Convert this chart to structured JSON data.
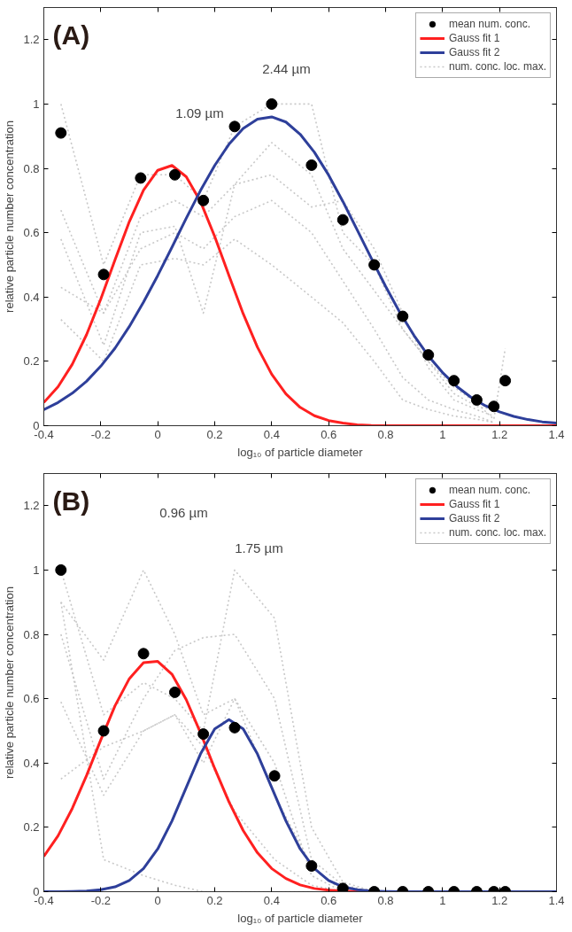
{
  "chart_data": [
    {
      "type": "line",
      "xlabel": "log₁₀ of particle diameter",
      "ylabel": "relative particle number concentration",
      "xlim": [
        -0.4,
        1.4
      ],
      "ylim": [
        0,
        1.3
      ],
      "xticks": [
        -0.4,
        -0.2,
        0,
        0.2,
        0.4,
        0.6,
        0.8,
        1,
        1.2,
        1.4
      ],
      "yticks": [
        0,
        0.2,
        0.4,
        0.6,
        0.8,
        1,
        1.2
      ],
      "grid": false,
      "legend": "top right",
      "annotations": [
        "(A)",
        "1.09 µm",
        "2.44 µm"
      ],
      "x": [
        -0.4,
        -0.35,
        -0.3,
        -0.25,
        -0.2,
        -0.15,
        -0.1,
        -0.05,
        0,
        0.05,
        0.1,
        0.15,
        0.2,
        0.25,
        0.3,
        0.35,
        0.4,
        0.45,
        0.5,
        0.55,
        0.6,
        0.65,
        0.7,
        0.75,
        0.8,
        0.85,
        0.9,
        0.95,
        1,
        1.05,
        1.1,
        1.15,
        1.2,
        1.25,
        1.3,
        1.35,
        1.4
      ],
      "series": [
        {
          "type": "scatter",
          "name": "mean num. conc.",
          "color": "#000000",
          "marker": "circle",
          "x": [
            -0.34,
            -0.19,
            -0.06,
            0.06,
            0.16,
            0.27,
            0.4,
            0.54,
            0.65,
            0.76,
            0.86,
            0.95,
            1.04,
            1.12,
            1.18,
            1.22
          ],
          "values": [
            0.91,
            0.47,
            0.77,
            0.78,
            0.7,
            0.93,
            1.0,
            0.81,
            0.64,
            0.5,
            0.34,
            0.22,
            0.14,
            0.08,
            0.06,
            0.14
          ]
        },
        {
          "name": "Gauss fit 1",
          "color": "#ff2020",
          "line_style": "solid",
          "values": [
            0.072,
            0.121,
            0.191,
            0.283,
            0.394,
            0.516,
            0.634,
            0.732,
            0.794,
            0.809,
            0.774,
            0.697,
            0.588,
            0.467,
            0.348,
            0.244,
            0.16,
            0.099,
            0.057,
            0.031,
            0.016,
            0.008,
            0.003,
            0.001,
            0,
            0,
            0,
            0,
            0,
            0,
            0,
            0,
            0,
            0,
            0,
            0,
            0
          ]
        },
        {
          "name": "Gauss fit 2",
          "color": "#2e3f9a",
          "line_style": "solid",
          "values": [
            0.05,
            0.072,
            0.101,
            0.138,
            0.185,
            0.241,
            0.308,
            0.384,
            0.467,
            0.555,
            0.645,
            0.731,
            0.809,
            0.875,
            0.924,
            0.953,
            0.96,
            0.944,
            0.906,
            0.85,
            0.779,
            0.697,
            0.609,
            0.52,
            0.433,
            0.352,
            0.28,
            0.217,
            0.165,
            0.122,
            0.088,
            0.062,
            0.043,
            0.029,
            0.019,
            0.012,
            0.008
          ]
        },
        {
          "name": "num. conc. loc. max.",
          "color": "#c8c8c8",
          "line_style": "dotted",
          "x": [
            -0.34,
            -0.19,
            -0.06,
            0.06,
            0.16,
            0.27,
            0.4,
            0.54,
            0.65,
            0.76,
            0.86,
            0.95,
            1.04,
            1.12,
            1.18,
            1.22
          ],
          "values": [
            1.0,
            0.5,
            0.78,
            0.78,
            0.7,
            0.93,
            1.0,
            1.0,
            0.6,
            0.5,
            0.3,
            0.2,
            0.12,
            0.07,
            0.02,
            0.24
          ]
        },
        {
          "color": "#c8c8c8",
          "line_style": "dotted",
          "x": [
            -0.34,
            -0.19,
            -0.06,
            0.06,
            0.16,
            0.27,
            0.4,
            0.54,
            0.65,
            0.76,
            0.86,
            0.95,
            1.04,
            1.12,
            1.18
          ],
          "values": [
            0.67,
            0.35,
            0.65,
            0.7,
            0.65,
            0.75,
            0.88,
            0.78,
            0.55,
            0.42,
            0.3,
            0.2,
            0.1,
            0.06,
            0.05
          ]
        },
        {
          "color": "#c8c8c8",
          "line_style": "dotted",
          "x": [
            -0.34,
            -0.19,
            -0.06,
            0.06,
            0.16,
            0.27,
            0.4,
            0.54,
            0.65,
            0.76,
            0.86,
            0.95,
            1.04,
            1.12,
            1.18
          ],
          "values": [
            0.58,
            0.25,
            0.6,
            0.62,
            0.35,
            0.75,
            0.78,
            0.68,
            0.7,
            0.55,
            0.35,
            0.18,
            0.08,
            0.05,
            0.03
          ]
        },
        {
          "color": "#c8c8c8",
          "line_style": "dotted",
          "x": [
            -0.34,
            -0.19,
            -0.06,
            0.06,
            0.16,
            0.27,
            0.4,
            0.54,
            0.65,
            0.76,
            0.86,
            0.95,
            1.04,
            1.12,
            1.18
          ],
          "values": [
            0.43,
            0.35,
            0.55,
            0.6,
            0.55,
            0.65,
            0.7,
            0.6,
            0.45,
            0.3,
            0.15,
            0.08,
            0.05,
            0.03,
            0.01
          ]
        },
        {
          "color": "#c8c8c8",
          "line_style": "dotted",
          "x": [
            -0.34,
            -0.19,
            -0.06,
            0.06,
            0.16,
            0.27,
            0.4,
            0.54,
            0.65,
            0.76,
            0.86,
            0.95,
            1.04,
            1.12,
            1.18
          ],
          "values": [
            0.33,
            0.2,
            0.5,
            0.52,
            0.5,
            0.58,
            0.5,
            0.4,
            0.32,
            0.2,
            0.08,
            0.05,
            0.03,
            0.02,
            0.01
          ]
        }
      ]
    },
    {
      "type": "line",
      "xlabel": "log₁₀ of particle diameter",
      "ylabel": "relative particle number concentration",
      "xlim": [
        -0.4,
        1.4
      ],
      "ylim": [
        0,
        1.3
      ],
      "xticks": [
        -0.4,
        -0.2,
        0,
        0.2,
        0.4,
        0.6,
        0.8,
        1,
        1.2,
        1.4
      ],
      "yticks": [
        0,
        0.2,
        0.4,
        0.6,
        0.8,
        1,
        1.2
      ],
      "grid": false,
      "legend": "top right",
      "annotations": [
        "(B)",
        "0.96 µm",
        "1.75 µm"
      ],
      "x": [
        -0.4,
        -0.35,
        -0.3,
        -0.25,
        -0.2,
        -0.15,
        -0.1,
        -0.05,
        0,
        0.05,
        0.1,
        0.15,
        0.2,
        0.25,
        0.3,
        0.35,
        0.4,
        0.45,
        0.5,
        0.55,
        0.6,
        0.65,
        0.7,
        0.75,
        0.8,
        0.85,
        0.9,
        0.95,
        1,
        1.05,
        1.1,
        1.15,
        1.2,
        1.25,
        1.3,
        1.35,
        1.4
      ],
      "series": [
        {
          "type": "scatter",
          "name": "mean num. conc.",
          "color": "#000000",
          "marker": "circle",
          "x": [
            -0.34,
            -0.19,
            -0.05,
            0.06,
            0.16,
            0.27,
            0.41,
            0.54,
            0.65,
            0.76,
            0.86,
            0.95,
            1.04,
            1.12,
            1.18,
            1.22
          ],
          "values": [
            1.0,
            0.5,
            0.74,
            0.62,
            0.49,
            0.51,
            0.36,
            0.08,
            0.01,
            0,
            0,
            0,
            0,
            0,
            0,
            0
          ]
        },
        {
          "name": "Gauss fit 1",
          "color": "#ff2020",
          "line_style": "solid",
          "x": [
            -0.4,
            -0.35,
            -0.3,
            -0.25,
            -0.2,
            -0.15,
            -0.1,
            -0.05,
            0,
            0.05,
            0.1,
            0.15,
            0.2,
            0.25,
            0.3,
            0.35,
            0.4,
            0.45,
            0.5,
            0.55,
            0.6,
            0.65,
            0.7,
            0.75
          ],
          "values": [
            0.11,
            0.174,
            0.259,
            0.361,
            0.472,
            0.578,
            0.662,
            0.712,
            0.716,
            0.676,
            0.597,
            0.494,
            0.383,
            0.279,
            0.19,
            0.121,
            0.072,
            0.041,
            0.021,
            0.01,
            0.005,
            0.002,
            0.001,
            0
          ]
        },
        {
          "name": "Gauss fit 2",
          "color": "#2e3f9a",
          "line_style": "solid",
          "values": [
            0,
            0,
            0.001,
            0.002,
            0.006,
            0.015,
            0.035,
            0.072,
            0.133,
            0.22,
            0.324,
            0.428,
            0.506,
            0.535,
            0.506,
            0.428,
            0.324,
            0.22,
            0.133,
            0.072,
            0.035,
            0.015,
            0.006,
            0.002,
            0.001,
            0,
            0,
            0,
            0,
            0,
            0,
            0,
            0,
            0,
            0,
            0,
            0
          ]
        },
        {
          "name": "num. conc. loc. max.",
          "color": "#c8c8c8",
          "line_style": "dotted",
          "x": [
            -0.34,
            -0.19,
            -0.05,
            0.06,
            0.16,
            0.27,
            0.41,
            0.54,
            0.65,
            0.76
          ],
          "values": [
            1.0,
            0.55,
            0.65,
            0.6,
            0.5,
            1.0,
            0.85,
            0.2,
            0.03,
            0
          ]
        },
        {
          "color": "#c8c8c8",
          "line_style": "dotted",
          "x": [
            -0.34,
            -0.19,
            -0.05,
            0.06,
            0.16,
            0.27,
            0.41,
            0.54,
            0.65,
            0.76
          ],
          "values": [
            0.9,
            0.72,
            1.0,
            0.8,
            0.55,
            0.6,
            0.4,
            0.05,
            0,
            0
          ]
        },
        {
          "color": "#c8c8c8",
          "line_style": "dotted",
          "x": [
            -0.34,
            -0.19,
            -0.05,
            0.06,
            0.16,
            0.27,
            0.41,
            0.54,
            0.65,
            0.76
          ],
          "values": [
            0.8,
            0.35,
            0.6,
            0.75,
            0.79,
            0.8,
            0.6,
            0.1,
            0.02,
            0
          ]
        },
        {
          "color": "#c8c8c8",
          "line_style": "dotted",
          "x": [
            -0.34,
            -0.19,
            -0.05,
            0.06,
            0.16,
            0.27,
            0.41,
            0.54,
            0.65,
            0.76
          ],
          "values": [
            0.59,
            0.3,
            0.5,
            0.55,
            0.4,
            0.6,
            0.3,
            0.08,
            0,
            0
          ]
        },
        {
          "color": "#c8c8c8",
          "line_style": "dotted",
          "x": [
            -0.34,
            -0.19,
            -0.05,
            0.06,
            0.16,
            0.27,
            0.41,
            0.54,
            0.65,
            0.76
          ],
          "values": [
            0.35,
            0.45,
            0.5,
            0.55,
            0.45,
            0.25,
            0.1,
            0.02,
            0,
            0
          ]
        },
        {
          "color": "#c8c8c8",
          "line_style": "dotted",
          "x": [
            -0.34,
            -0.19,
            -0.05,
            0.06,
            0.16,
            0.27,
            0.41,
            0.54
          ],
          "values": [
            0.9,
            0.1,
            0.05,
            0.02,
            0,
            0,
            0,
            0
          ]
        }
      ]
    }
  ]
}
